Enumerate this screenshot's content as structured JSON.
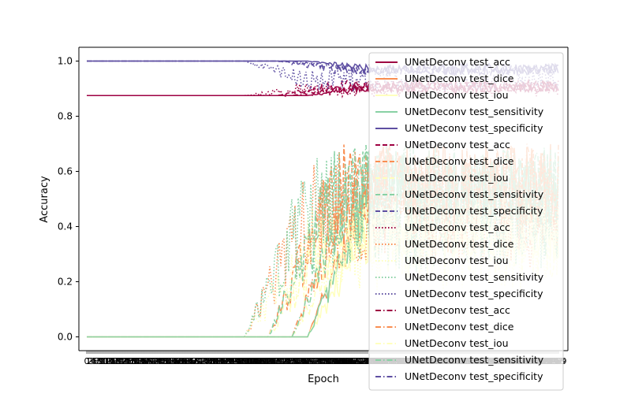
{
  "chart_data": {
    "type": "line",
    "title": "",
    "xlabel": "Epoch",
    "ylabel": "Accuracy",
    "ylim": [
      -0.05,
      1.05
    ],
    "xlim": [
      -5,
      305
    ],
    "n_epochs": 300,
    "yticks": [
      0.0,
      0.2,
      0.4,
      0.6,
      0.8,
      1.0
    ],
    "ytick_labels": [
      "0.0",
      "0.2",
      "0.4",
      "0.6",
      "0.8",
      "1.0"
    ],
    "grid": false,
    "legend_placement": "right",
    "colors": {
      "test_acc": "#9e0142",
      "test_dice": "#f98e52",
      "test_iou": "#ffffbe",
      "test_sensitivity": "#88d1a4",
      "test_specificity": "#5e4fa2"
    },
    "series": [
      {
        "name": "UNetDeconv test_acc",
        "metric": "test_acc",
        "linestyle": "solid",
        "plateau": 0.875,
        "start": 140,
        "target": 0.905,
        "spread": 0.02
      },
      {
        "name": "UNetDeconv test_dice",
        "metric": "test_dice",
        "linestyle": "solid",
        "plateau": 0.0,
        "start": 140,
        "target": 0.55,
        "spread": 0.15
      },
      {
        "name": "UNetDeconv test_iou",
        "metric": "test_iou",
        "linestyle": "solid",
        "plateau": 0.0,
        "start": 140,
        "target": 0.4,
        "spread": 0.12
      },
      {
        "name": "UNetDeconv test_sensitivity",
        "metric": "test_sensitivity",
        "linestyle": "solid",
        "plateau": 0.0,
        "start": 140,
        "target": 0.52,
        "spread": 0.15
      },
      {
        "name": "UNetDeconv test_specificity",
        "metric": "test_specificity",
        "linestyle": "solid",
        "plateau": 1.0,
        "start": 140,
        "target": 0.97,
        "spread": 0.02
      },
      {
        "name": "UNetDeconv test_acc",
        "metric": "test_acc",
        "linestyle": "dashed",
        "plateau": 0.875,
        "start": 120,
        "target": 0.91,
        "spread": 0.02
      },
      {
        "name": "UNetDeconv test_dice",
        "metric": "test_dice",
        "linestyle": "dashed",
        "plateau": 0.0,
        "start": 115,
        "target": 0.5,
        "spread": 0.2
      },
      {
        "name": "UNetDeconv test_iou",
        "metric": "test_iou",
        "linestyle": "dashed",
        "plateau": 0.0,
        "start": 115,
        "target": 0.36,
        "spread": 0.15
      },
      {
        "name": "UNetDeconv test_sensitivity",
        "metric": "test_sensitivity",
        "linestyle": "dashed",
        "plateau": 0.0,
        "start": 115,
        "target": 0.48,
        "spread": 0.2
      },
      {
        "name": "UNetDeconv test_specificity",
        "metric": "test_specificity",
        "linestyle": "dashed",
        "plateau": 1.0,
        "start": 120,
        "target": 0.97,
        "spread": 0.02
      },
      {
        "name": "UNetDeconv test_acc",
        "metric": "test_acc",
        "linestyle": "dotted",
        "plateau": 0.875,
        "start": 100,
        "target": 0.9,
        "spread": 0.03
      },
      {
        "name": "UNetDeconv test_dice",
        "metric": "test_dice",
        "linestyle": "dotted",
        "plateau": 0.0,
        "start": 100,
        "target": 0.45,
        "spread": 0.2
      },
      {
        "name": "UNetDeconv test_iou",
        "metric": "test_iou",
        "linestyle": "dotted",
        "plateau": 0.0,
        "start": 100,
        "target": 0.32,
        "spread": 0.15
      },
      {
        "name": "UNetDeconv test_sensitivity",
        "metric": "test_sensitivity",
        "linestyle": "dotted",
        "plateau": 0.0,
        "start": 100,
        "target": 0.45,
        "spread": 0.22
      },
      {
        "name": "UNetDeconv test_specificity",
        "metric": "test_specificity",
        "linestyle": "dotted",
        "plateau": 1.0,
        "start": 100,
        "target": 0.93,
        "spread": 0.04
      },
      {
        "name": "UNetDeconv test_acc",
        "metric": "test_acc",
        "linestyle": "dashdot",
        "plateau": 0.875,
        "start": 130,
        "target": 0.91,
        "spread": 0.02
      },
      {
        "name": "UNetDeconv test_dice",
        "metric": "test_dice",
        "linestyle": "dashdot",
        "plateau": 0.0,
        "start": 130,
        "target": 0.55,
        "spread": 0.15
      },
      {
        "name": "UNetDeconv test_iou",
        "metric": "test_iou",
        "linestyle": "dashdot",
        "plateau": 0.0,
        "start": 130,
        "target": 0.4,
        "spread": 0.12
      },
      {
        "name": "UNetDeconv test_sensitivity",
        "metric": "test_sensitivity",
        "linestyle": "dashdot",
        "plateau": 0.0,
        "start": 130,
        "target": 0.55,
        "spread": 0.15
      },
      {
        "name": "UNetDeconv test_specificity",
        "metric": "test_specificity",
        "linestyle": "dashdot",
        "plateau": 1.0,
        "start": 130,
        "target": 0.97,
        "spread": 0.02
      }
    ]
  }
}
